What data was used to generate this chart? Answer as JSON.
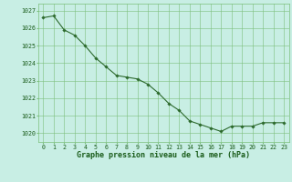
{
  "x": [
    0,
    1,
    2,
    3,
    4,
    5,
    6,
    7,
    8,
    9,
    10,
    11,
    12,
    13,
    14,
    15,
    16,
    17,
    18,
    19,
    20,
    21,
    22,
    23
  ],
  "y": [
    1026.6,
    1026.7,
    1025.9,
    1025.6,
    1025.0,
    1024.3,
    1023.8,
    1023.3,
    1023.2,
    1023.1,
    1022.8,
    1022.3,
    1021.7,
    1021.3,
    1020.7,
    1020.5,
    1020.3,
    1020.1,
    1020.4,
    1020.4,
    1020.4,
    1020.6,
    1020.6,
    1020.6
  ],
  "line_color": "#2d6a2d",
  "marker": "D",
  "marker_size": 1.8,
  "line_width": 0.8,
  "bg_color": "#c8eee4",
  "grid_color": "#7bbf7b",
  "xlabel": "Graphe pression niveau de la mer (hPa)",
  "xlabel_fontsize": 6.0,
  "xlabel_color": "#1a5c1a",
  "ylim": [
    1019.5,
    1027.4
  ],
  "yticks": [
    1020,
    1021,
    1022,
    1023,
    1024,
    1025,
    1026,
    1027
  ],
  "xticks": [
    0,
    1,
    2,
    3,
    4,
    5,
    6,
    7,
    8,
    9,
    10,
    11,
    12,
    13,
    14,
    15,
    16,
    17,
    18,
    19,
    20,
    21,
    22,
    23
  ],
  "tick_fontsize": 4.8,
  "tick_color": "#1a5c1a"
}
